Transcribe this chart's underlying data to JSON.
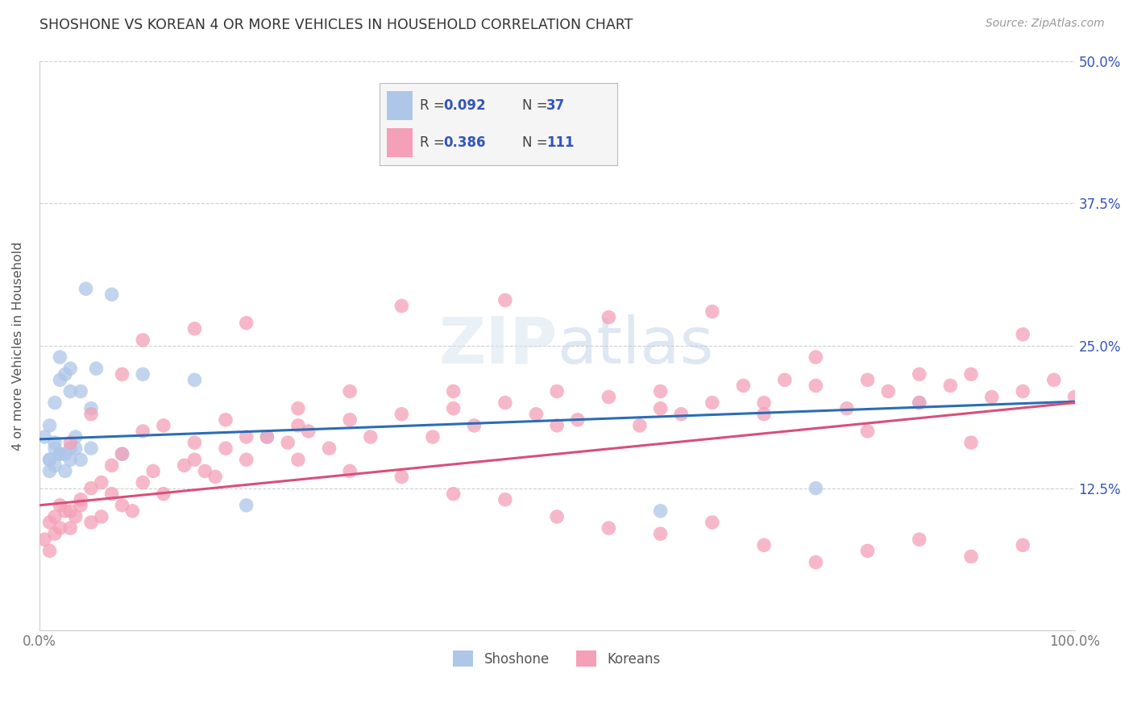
{
  "title": "SHOSHONE VS KOREAN 4 OR MORE VEHICLES IN HOUSEHOLD CORRELATION CHART",
  "source": "Source: ZipAtlas.com",
  "ylabel": "4 or more Vehicles in Household",
  "xlim": [
    0,
    100
  ],
  "ylim": [
    0,
    50
  ],
  "background_color": "#ffffff",
  "grid_color": "#d0d0d0",
  "blue_color": "#aec6e8",
  "pink_color": "#f4a0b8",
  "line_blue": "#2a6db5",
  "line_pink": "#d94f7a",
  "text_blue": "#3355bb",
  "legend_label_color": "#444444",
  "tick_color": "#777777",
  "title_color": "#333333",
  "source_color": "#999999",
  "shoshone_x": [
    1.0,
    1.5,
    2.0,
    0.5,
    1.0,
    1.5,
    2.5,
    3.0,
    1.5,
    2.5,
    3.5,
    2.0,
    4.0,
    1.0,
    2.0,
    3.0,
    4.5,
    5.0,
    3.0,
    5.5,
    7.0,
    8.0,
    10.0,
    15.0,
    20.0,
    22.0,
    60.0,
    75.0,
    85.0,
    1.0,
    1.5,
    2.0,
    2.5,
    3.0,
    3.5,
    4.0,
    5.0
  ],
  "shoshone_y": [
    15.0,
    16.5,
    15.5,
    17.0,
    18.0,
    20.0,
    15.5,
    16.0,
    16.0,
    22.5,
    17.0,
    24.0,
    21.0,
    14.0,
    22.0,
    21.0,
    30.0,
    16.0,
    23.0,
    23.0,
    29.5,
    15.5,
    22.5,
    22.0,
    11.0,
    17.0,
    10.5,
    12.5,
    20.0,
    15.0,
    14.5,
    15.5,
    14.0,
    15.0,
    16.0,
    15.0,
    19.5
  ],
  "korean_x": [
    0.5,
    1.0,
    1.5,
    2.0,
    2.5,
    3.0,
    3.5,
    4.0,
    5.0,
    6.0,
    7.0,
    8.0,
    9.0,
    10.0,
    11.0,
    12.0,
    14.0,
    15.0,
    16.0,
    17.0,
    18.0,
    20.0,
    22.0,
    24.0,
    25.0,
    26.0,
    28.0,
    30.0,
    32.0,
    35.0,
    38.0,
    40.0,
    42.0,
    45.0,
    48.0,
    50.0,
    52.0,
    55.0,
    58.0,
    60.0,
    62.0,
    65.0,
    68.0,
    70.0,
    72.0,
    75.0,
    78.0,
    80.0,
    82.0,
    85.0,
    88.0,
    90.0,
    92.0,
    95.0,
    98.0,
    100.0,
    1.0,
    1.5,
    2.0,
    3.0,
    4.0,
    5.0,
    6.0,
    7.0,
    8.0,
    10.0,
    12.0,
    15.0,
    18.0,
    20.0,
    25.0,
    30.0,
    35.0,
    40.0,
    45.0,
    50.0,
    55.0,
    60.0,
    65.0,
    70.0,
    75.0,
    80.0,
    85.0,
    90.0,
    95.0,
    3.0,
    5.0,
    8.0,
    10.0,
    15.0,
    20.0,
    25.0,
    30.0,
    40.0,
    50.0,
    60.0,
    70.0,
    80.0,
    90.0,
    35.0,
    45.0,
    55.0,
    65.0,
    75.0,
    85.0,
    95.0
  ],
  "korean_y": [
    8.0,
    9.5,
    10.0,
    11.0,
    10.5,
    9.0,
    10.0,
    11.5,
    9.5,
    10.0,
    12.0,
    11.0,
    10.5,
    13.0,
    14.0,
    12.0,
    14.5,
    15.0,
    14.0,
    13.5,
    16.0,
    15.0,
    17.0,
    16.5,
    18.0,
    17.5,
    16.0,
    18.5,
    17.0,
    19.0,
    17.0,
    19.5,
    18.0,
    20.0,
    19.0,
    21.0,
    18.5,
    20.5,
    18.0,
    21.0,
    19.0,
    20.0,
    21.5,
    20.0,
    22.0,
    21.5,
    19.5,
    22.0,
    21.0,
    20.0,
    21.5,
    22.5,
    20.5,
    21.0,
    22.0,
    20.5,
    7.0,
    8.5,
    9.0,
    10.5,
    11.0,
    12.5,
    13.0,
    14.5,
    15.5,
    17.5,
    18.0,
    16.5,
    18.5,
    17.0,
    15.0,
    14.0,
    13.5,
    12.0,
    11.5,
    10.0,
    9.0,
    8.5,
    9.5,
    7.5,
    6.0,
    7.0,
    8.0,
    6.5,
    7.5,
    16.5,
    19.0,
    22.5,
    25.5,
    26.5,
    27.0,
    19.5,
    21.0,
    21.0,
    18.0,
    19.5,
    19.0,
    17.5,
    16.5,
    28.5,
    29.0,
    27.5,
    28.0,
    24.0,
    22.5,
    26.0
  ]
}
